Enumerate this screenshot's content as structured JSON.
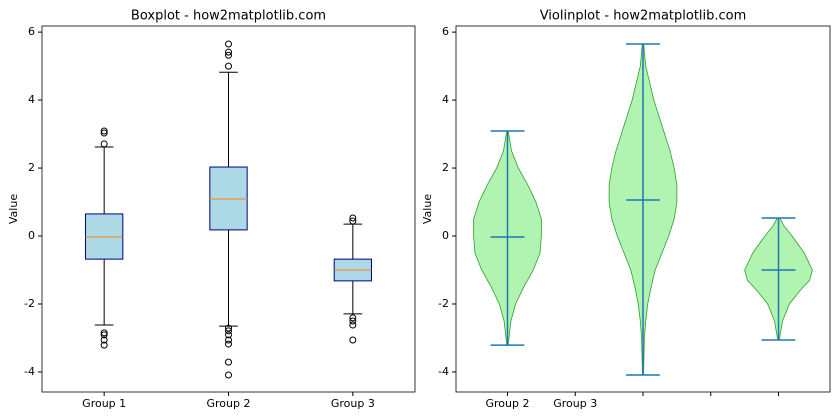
{
  "chart_data": [
    {
      "type": "box",
      "title": "Boxplot - how2matplotlib.com",
      "ylabel": "Value",
      "categories": [
        "Group 1",
        "Group 2",
        "Group 3"
      ],
      "fill_color": "#add8e6",
      "edge_color": "#000080",
      "median_color": "#ff7f0e",
      "ylim": [
        -4.59,
        6.18
      ],
      "yticks": [
        -4,
        -2,
        0,
        2,
        4,
        6
      ],
      "stats": [
        {
          "whislo": -2.62,
          "q1": -0.68,
          "med": -0.03,
          "q3": 0.65,
          "whishi": 2.62,
          "fliers": [
            3.09,
            3.03,
            2.71,
            -2.85,
            -2.91,
            -3.06,
            -3.21
          ]
        },
        {
          "whislo": -2.65,
          "q1": 0.18,
          "med": 1.09,
          "q3": 2.03,
          "whishi": 4.82,
          "fliers": [
            5.65,
            5.41,
            5.32,
            5.0,
            -2.71,
            -2.79,
            -2.91,
            -3.06,
            -3.18,
            -3.71,
            -4.09
          ]
        },
        {
          "whislo": -2.29,
          "q1": -1.32,
          "med": -1.0,
          "q3": -0.68,
          "whishi": 0.35,
          "fliers": [
            0.53,
            0.44,
            -2.41,
            -2.5,
            -2.62,
            -3.06
          ]
        }
      ]
    },
    {
      "type": "violin",
      "title": "Violinplot - how2matplotlib.com",
      "ylabel": "Value",
      "fill_color": "#90ee90",
      "line_color": "#1f77b4",
      "xlim": [
        0.62,
        3.38
      ],
      "ylim": [
        -4.59,
        6.18
      ],
      "yticks": [
        -4,
        -2,
        0,
        2,
        4,
        6
      ],
      "xticks": [
        {
          "value": 1,
          "label": "Group 2"
        },
        {
          "value": 1.5,
          "label": "Group 3"
        },
        {
          "value": 2,
          "label": null
        },
        {
          "value": 2.5,
          "label": null
        },
        {
          "value": 3,
          "label": null
        }
      ],
      "positions": [
        1,
        2,
        3
      ],
      "maxima": [
        3.09,
        5.65,
        0.53
      ],
      "minima": [
        -3.21,
        -4.09,
        -3.06
      ],
      "means": [
        -0.03,
        1.06,
        -1.0
      ],
      "kde": [
        {
          "y": [
            3.09,
            2.5,
            2.0,
            1.5,
            1.0,
            0.5,
            0,
            -0.5,
            -1.0,
            -1.5,
            -2.0,
            -2.5,
            -3.21
          ],
          "halfwidth": [
            0.005,
            0.03,
            0.08,
            0.15,
            0.21,
            0.25,
            0.25,
            0.24,
            0.19,
            0.12,
            0.06,
            0.025,
            0.005
          ]
        },
        {
          "y": [
            5.65,
            5,
            4.5,
            4,
            3.5,
            3,
            2.5,
            2,
            1.5,
            1,
            0.5,
            0,
            -0.5,
            -1,
            -1.5,
            -2,
            -2.5,
            -3,
            -4.09
          ],
          "halfwidth": [
            0.005,
            0.02,
            0.05,
            0.08,
            0.12,
            0.16,
            0.2,
            0.23,
            0.25,
            0.25,
            0.23,
            0.19,
            0.14,
            0.09,
            0.06,
            0.035,
            0.02,
            0.01,
            0.004
          ]
        },
        {
          "y": [
            0.53,
            0.3,
            0,
            -0.5,
            -1,
            -1.3,
            -1.6,
            -2,
            -2.5,
            -3.06
          ],
          "halfwidth": [
            0.01,
            0.04,
            0.1,
            0.19,
            0.25,
            0.23,
            0.16,
            0.08,
            0.03,
            0.005
          ]
        }
      ]
    }
  ]
}
